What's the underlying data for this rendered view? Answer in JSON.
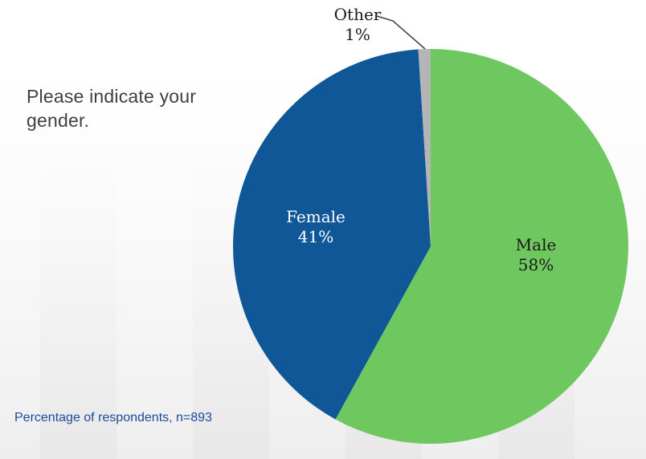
{
  "slide": {
    "question": "Please indicate your gender.",
    "question_color": "#3f3f3f",
    "footnote": "Percentage of respondents, n=893",
    "footnote_color": "#1b4a9c"
  },
  "chart_data": {
    "type": "pie",
    "title": "Please indicate your gender.",
    "note": "Percentage of respondents, n=893",
    "n": 893,
    "start_angle_deg": 0,
    "direction": "clockwise",
    "legend": "none",
    "slices": [
      {
        "label": "Male",
        "value": 58,
        "pct_label": "58%",
        "color": "#6fc75f",
        "label_color": "#1a1a1a",
        "label_position": "inside"
      },
      {
        "label": "Female",
        "value": 41,
        "pct_label": "41%",
        "color": "#0f5796",
        "label_color": "#ffffff",
        "label_position": "inside"
      },
      {
        "label": "Other",
        "value": 1,
        "pct_label": "1%",
        "color": "#b5b5b5",
        "label_color": "#1a1a1a",
        "label_position": "outside-callout"
      }
    ]
  }
}
